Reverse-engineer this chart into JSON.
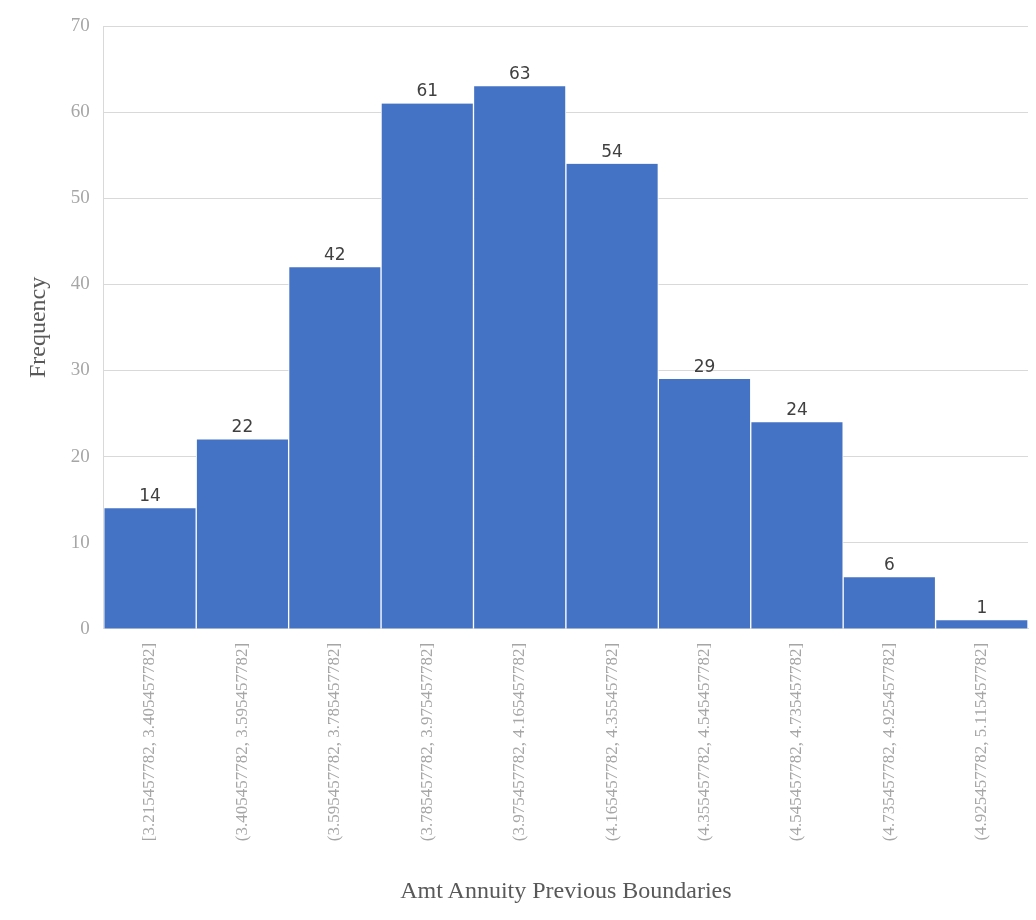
{
  "chart_data": {
    "type": "bar",
    "xlabel": "Amt Annuity Previous Boundaries",
    "ylabel": "Frequency",
    "categories": [
      "[3.215457782, 3.405457782]",
      "(3.405457782, 3.595457782]",
      "(3.595457782, 3.785457782]",
      "(3.785457782, 3.975457782]",
      "(3.975457782, 4.165457782]",
      "(4.165457782, 4.355457782]",
      "(4.355457782, 4.545457782]",
      "(4.545457782, 4.735457782]",
      "(4.735457782, 4.925457782]",
      "(4.925457782, 5.115457782]"
    ],
    "values": [
      14,
      22,
      42,
      61,
      63,
      54,
      29,
      24,
      6,
      1
    ],
    "color": "#4472c4",
    "ylim": [
      0,
      70
    ],
    "yticks": [
      0,
      10,
      20,
      30,
      40,
      50,
      60,
      70
    ],
    "grid": "y",
    "data_labels": true
  }
}
